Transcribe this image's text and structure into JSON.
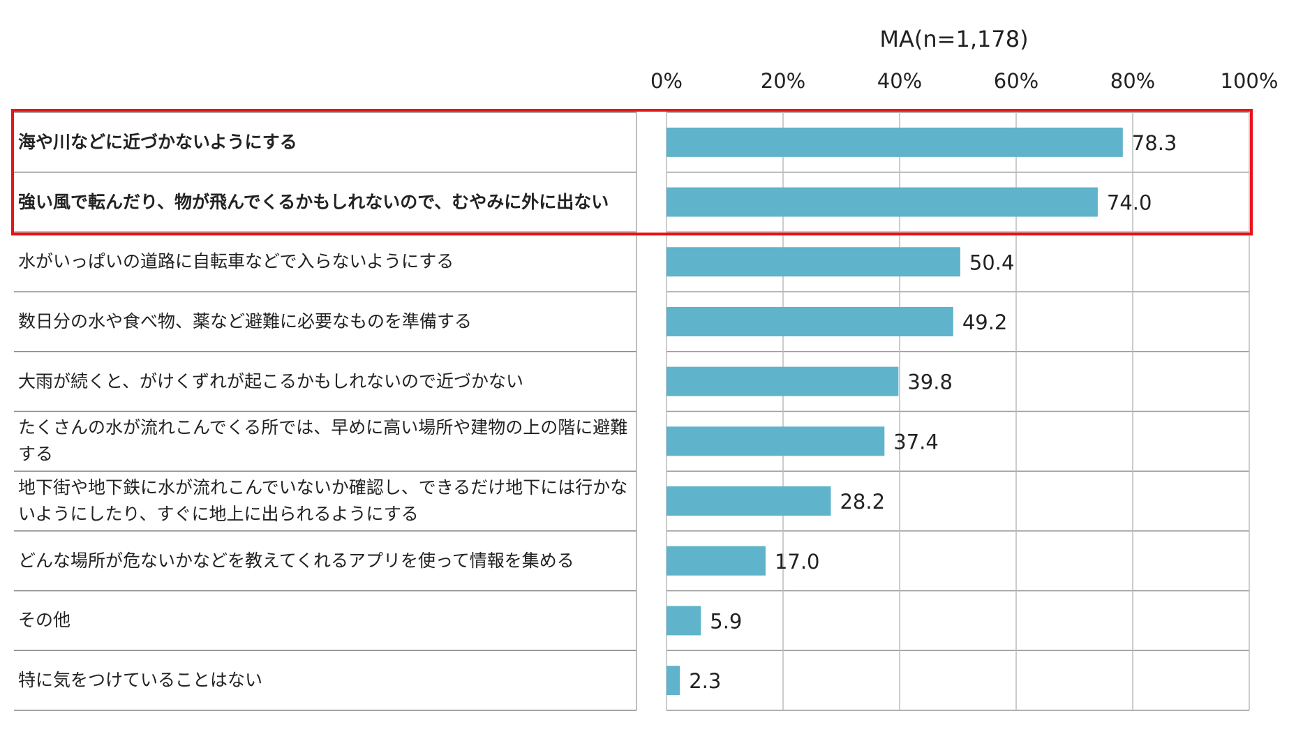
{
  "chart_data": {
    "type": "bar",
    "orientation": "horizontal",
    "subtitle": "MA(n=1,178)",
    "categories": [
      "海や川などに近づかないようにする",
      "強い風で転んだり、物が飛んでくるかもしれないので、むやみに外に出ない",
      "水がいっぱいの道路に自転車などで入らないようにする",
      "数日分の水や食べ物、薬など避難に必要なものを準備する",
      "大雨が続くと、がけくずれが起こるかもしれないので近づかない",
      "たくさんの水が流れこんでくる所では、早めに高い場所や建物の上の階に避難する",
      "地下街や地下鉄に水が流れこんでいないか確認し、できるだけ地下には行かないようにしたり、すぐに地上に出られるようにする",
      "どんな場所が危ないかなどを教えてくれるアプリを使って情報を集める",
      "その他",
      "特に気をつけていることはない"
    ],
    "values": [
      78.3,
      74.0,
      50.4,
      49.2,
      39.8,
      37.4,
      28.2,
      17.0,
      5.9,
      2.3
    ],
    "value_labels": [
      "78.3",
      "74.0",
      "50.4",
      "49.2",
      "39.8",
      "37.4",
      "28.2",
      "17.0",
      "5.9",
      "2.3"
    ],
    "color": "#5fb3cb",
    "xlim": [
      0,
      100
    ],
    "xticks": [
      {
        "value": 0,
        "label": "0%"
      },
      {
        "value": 20,
        "label": "20%"
      },
      {
        "value": 40,
        "label": "40%"
      },
      {
        "value": 60,
        "label": "60%"
      },
      {
        "value": 80,
        "label": "80%"
      },
      {
        "value": 100,
        "label": "100%"
      }
    ],
    "grid": true,
    "highlight": {
      "categories": [
        0,
        1
      ],
      "color": "#e8141b"
    }
  }
}
